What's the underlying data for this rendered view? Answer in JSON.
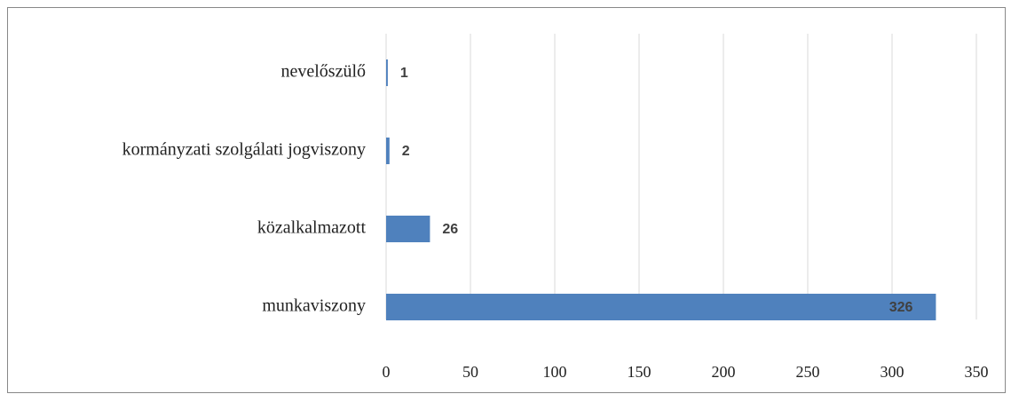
{
  "chart_data": {
    "type": "barh",
    "categories": [
      "nevelőszülő",
      "kormányzati szolgálati jogviszony",
      "közalkalmazott",
      "munkaviszony"
    ],
    "values": [
      1,
      2,
      26,
      326
    ],
    "color": "#4f81bd",
    "xlim": [
      0,
      350
    ],
    "xticks": [
      0,
      50,
      100,
      150,
      200,
      250,
      300,
      350
    ],
    "grid": true
  }
}
